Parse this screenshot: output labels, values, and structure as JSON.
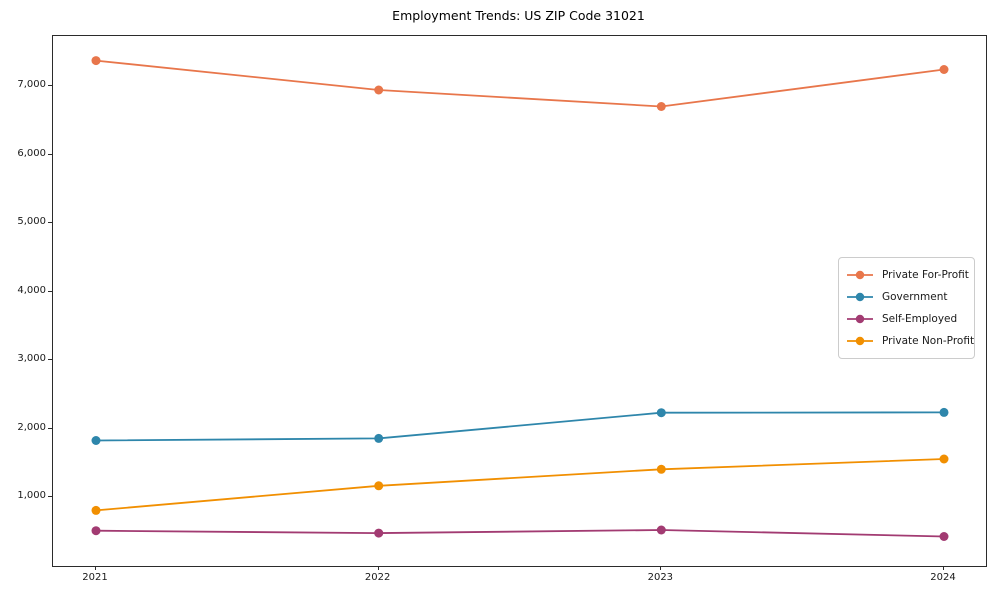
{
  "chart_data": {
    "type": "line",
    "title": "Employment Trends: US ZIP Code 31021",
    "xlabel": "",
    "ylabel": "",
    "categories": [
      "2021",
      "2022",
      "2023",
      "2024"
    ],
    "series": [
      {
        "name": "Private For-Profit",
        "color": "#E8764B",
        "values": [
          7370,
          6940,
          6700,
          7240
        ]
      },
      {
        "name": "Government",
        "color": "#2E86AB",
        "values": [
          1830,
          1860,
          2235,
          2240
        ]
      },
      {
        "name": "Self-Employed",
        "color": "#A23B72",
        "values": [
          515,
          480,
          525,
          430
        ]
      },
      {
        "name": "Private Non-Profit",
        "color": "#F18F01",
        "values": [
          810,
          1170,
          1410,
          1560
        ]
      }
    ],
    "ylim": [
      0,
      7728
    ],
    "yticks": [
      {
        "value": 1000,
        "label": "1,000"
      },
      {
        "value": 2000,
        "label": "2,000"
      },
      {
        "value": 3000,
        "label": "3,000"
      },
      {
        "value": 4000,
        "label": "4,000"
      },
      {
        "value": 5000,
        "label": "5,000"
      },
      {
        "value": 6000,
        "label": "6,000"
      },
      {
        "value": 7000,
        "label": "7,000"
      }
    ],
    "legend_position": "center right",
    "grid": false,
    "marker": "circle",
    "line_width": 1.8,
    "marker_radius": 4.5
  }
}
